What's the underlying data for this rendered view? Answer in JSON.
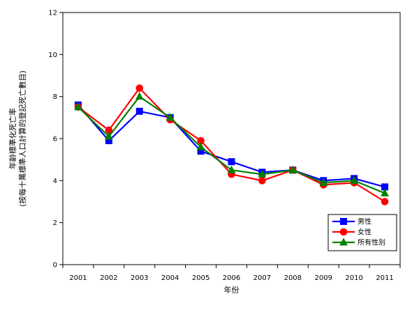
{
  "chart_data": {
    "type": "line",
    "title": "",
    "xlabel": "年份",
    "ylabel_lines": [
      "年齡標準化死亡率",
      "(按每十萬標準人口計算的登記死亡數目)"
    ],
    "x": [
      "2001",
      "2002",
      "2003",
      "2004",
      "2005",
      "2006",
      "2007",
      "2008",
      "2009",
      "2010",
      "2011"
    ],
    "ylim": [
      0,
      12
    ],
    "yticks": [
      "0",
      "2",
      "4",
      "6",
      "8",
      "10",
      "12"
    ],
    "grid": false,
    "legend_position": "bottom-right",
    "series": [
      {
        "name": "男性",
        "color": "#0000ff",
        "marker": "square",
        "values": [
          7.6,
          5.9,
          7.3,
          7.0,
          5.4,
          4.9,
          4.4,
          4.5,
          4.0,
          4.1,
          3.7
        ]
      },
      {
        "name": "女性",
        "color": "#ff0000",
        "marker": "circle",
        "values": [
          7.5,
          6.4,
          8.4,
          6.9,
          5.9,
          4.3,
          4.0,
          4.5,
          3.8,
          3.9,
          3.0
        ]
      },
      {
        "name": "所有性別",
        "color": "#008000",
        "marker": "triangle",
        "values": [
          7.5,
          6.1,
          8.0,
          7.0,
          5.6,
          4.5,
          4.3,
          4.5,
          3.9,
          4.0,
          3.4
        ]
      }
    ]
  }
}
